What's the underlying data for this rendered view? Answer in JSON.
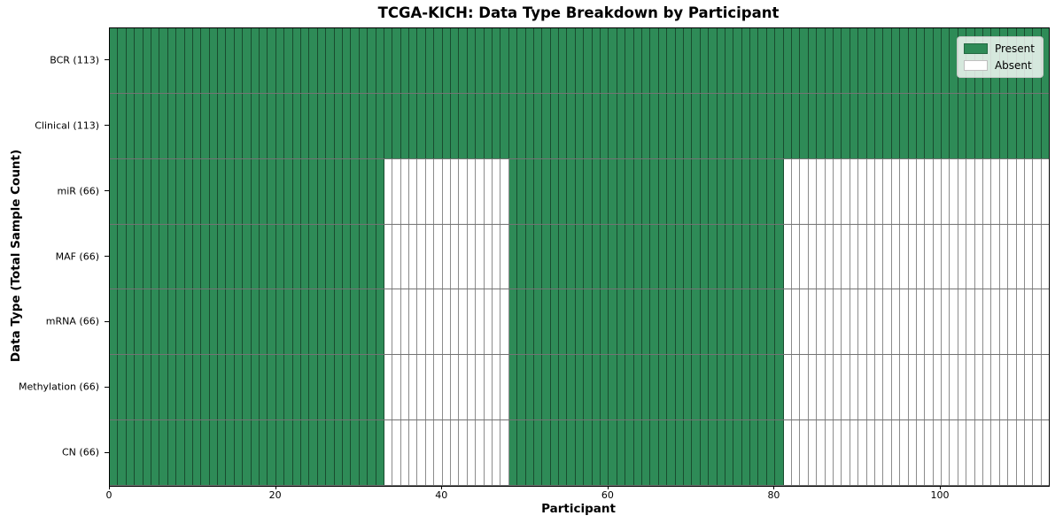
{
  "chart_data": {
    "type": "heatmap",
    "title": "TCGA-KICH: Data Type Breakdown by Participant",
    "xlabel": "Participant",
    "ylabel": "Data Type (Total Sample Count)",
    "n_participants": 113,
    "xlim": [
      0,
      113
    ],
    "x_ticks": [
      0,
      20,
      40,
      60,
      80,
      100
    ],
    "grid": false,
    "legend_position": "upper right",
    "colors": {
      "present": "#2e8b57",
      "absent": "#ffffff"
    },
    "legend": [
      {
        "label": "Present",
        "color": "#2e8b57"
      },
      {
        "label": "Absent",
        "color": "#ffffff"
      }
    ],
    "rows": [
      {
        "label": "BCR (113)",
        "data_type": "BCR",
        "total_samples": 113,
        "present_ranges": [
          [
            0,
            113
          ]
        ]
      },
      {
        "label": "Clinical (113)",
        "data_type": "Clinical",
        "total_samples": 113,
        "present_ranges": [
          [
            0,
            113
          ]
        ]
      },
      {
        "label": "miR (66)",
        "data_type": "miR",
        "total_samples": 66,
        "present_ranges": [
          [
            0,
            33
          ],
          [
            48,
            81
          ]
        ]
      },
      {
        "label": "MAF (66)",
        "data_type": "MAF",
        "total_samples": 66,
        "present_ranges": [
          [
            0,
            33
          ],
          [
            48,
            81
          ]
        ]
      },
      {
        "label": "mRNA (66)",
        "data_type": "mRNA",
        "total_samples": 66,
        "present_ranges": [
          [
            0,
            33
          ],
          [
            48,
            81
          ]
        ]
      },
      {
        "label": "Methylation (66)",
        "data_type": "Methylation",
        "total_samples": 66,
        "present_ranges": [
          [
            0,
            33
          ],
          [
            48,
            81
          ]
        ]
      },
      {
        "label": "CN (66)",
        "data_type": "CN",
        "total_samples": 66,
        "present_ranges": [
          [
            0,
            33
          ],
          [
            48,
            81
          ]
        ]
      }
    ]
  }
}
